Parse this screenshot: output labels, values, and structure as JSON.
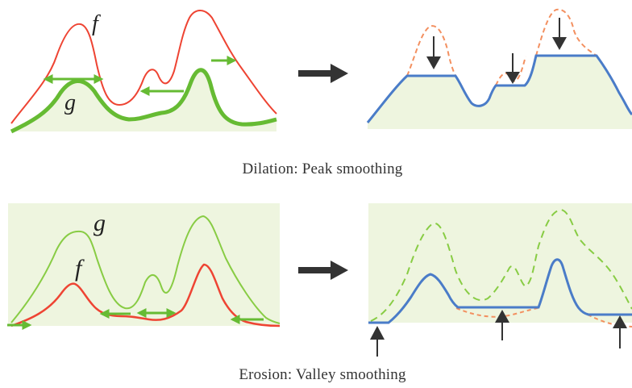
{
  "dilation": {
    "caption": "Dilation: Peak smoothing",
    "label_f": "f",
    "label_g": "g"
  },
  "erosion": {
    "caption": "Erosion: Valley smoothing",
    "label_f": "f",
    "label_g": "g"
  },
  "colors": {
    "f_curve": "#ee4433",
    "g_curve": "#66bb33",
    "result_curve": "#4a7cc8",
    "dashed_orange": "#f39060",
    "dashed_green": "#88cc44",
    "fill": "#eef5df",
    "arrow": "#333333"
  }
}
